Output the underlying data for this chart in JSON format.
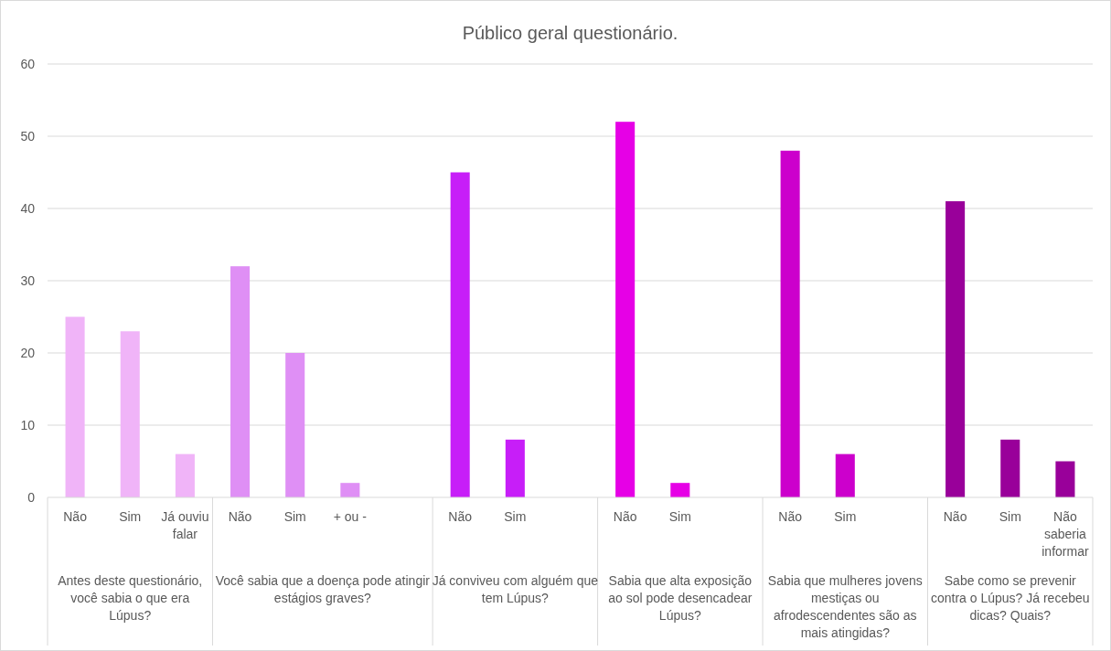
{
  "chart_data": {
    "type": "bar",
    "title": "Público geral questionário.",
    "categories": [
      "Não",
      "Sim",
      "Já ouviu falar",
      "Não",
      "Sim",
      "+ ou -",
      null,
      "Não",
      "Sim",
      null,
      "Não",
      "Sim",
      null,
      "Não",
      "Sim",
      null,
      "Não",
      "Sim",
      "Não saberia informar"
    ],
    "values": [
      25,
      23,
      6,
      32,
      20,
      2,
      null,
      45,
      8,
      null,
      52,
      2,
      null,
      48,
      6,
      null,
      41,
      8,
      5
    ],
    "colors": [
      "#f0b4f8",
      "#f0b4f8",
      "#f0b4f8",
      "#df8ff5",
      "#df8ff5",
      "#df8ff5",
      "#df8ff5",
      "#c71ef8",
      "#c71ef8",
      "#c71ef8",
      "#e600e6",
      "#e600e6",
      "#e600e6",
      "#cc00cc",
      "#cc00cc",
      "#cc00cc",
      "#99009a",
      "#99009a",
      "#99009a"
    ],
    "annotations": [
      "Antes deste questionário, você sabia o que era Lúpus?",
      "Você sabia que a doença pode atingir estágios graves?",
      "Já conviveu com alguém que tem Lúpus?",
      "Sabia que alta exposição ao sol pode desencadear Lúpus?",
      "Sabia que mulheres jovens mestiças ou afrodescendentes são as mais atingidas?",
      "Sabe como se prevenir contra o Lúpus? Já recebeu dicas? Quais?"
    ],
    "ylim": [
      0,
      60
    ],
    "yticks": [
      0,
      10,
      20,
      30,
      40,
      50,
      60
    ],
    "grid": "y"
  }
}
